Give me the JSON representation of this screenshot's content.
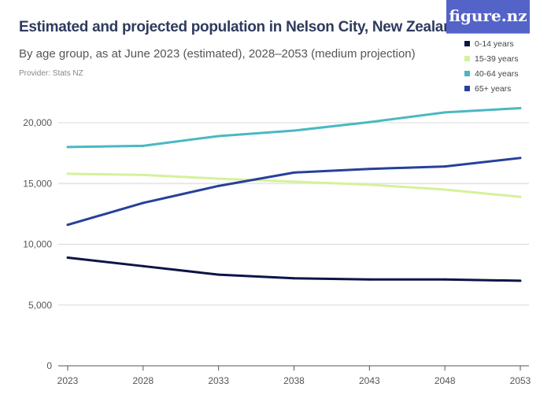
{
  "header": {
    "title": "Estimated and projected population in Nelson City, New Zealand",
    "subtitle": "By age group, as at June 2023 (estimated), 2028–2053 (medium projection)",
    "provider": "Provider: Stats NZ",
    "logo": "figure.nz"
  },
  "chart_data": {
    "type": "line",
    "title": "Estimated and projected population in Nelson City, New Zealand",
    "subtitle": "By age group, as at June 2023 (estimated), 2028–2053 (medium projection)",
    "xlabel": "",
    "ylabel": "",
    "x": [
      "2023",
      "2028",
      "2033",
      "2038",
      "2043",
      "2048",
      "2053"
    ],
    "ylim": [
      0,
      21500
    ],
    "yticks": [
      0,
      5000,
      10000,
      15000,
      20000
    ],
    "ytick_labels": [
      "0",
      "5,000",
      "10,000",
      "15,000",
      "20,000"
    ],
    "grid": true,
    "legend_placement": "top-right",
    "series": [
      {
        "name": "0-14 years",
        "color": "#0b1546",
        "values": [
          8900,
          8200,
          7500,
          7200,
          7100,
          7100,
          7000
        ]
      },
      {
        "name": "15-39 years",
        "color": "#d4f29a",
        "values": [
          15800,
          15700,
          15400,
          15150,
          14900,
          14500,
          13900
        ]
      },
      {
        "name": "40-64 years",
        "color": "#4ab8c4",
        "values": [
          18000,
          18100,
          18900,
          19350,
          20050,
          20850,
          21200
        ]
      },
      {
        "name": "65+ years",
        "color": "#27409a",
        "values": [
          11600,
          13400,
          14800,
          15900,
          16200,
          16400,
          17100
        ]
      }
    ]
  }
}
